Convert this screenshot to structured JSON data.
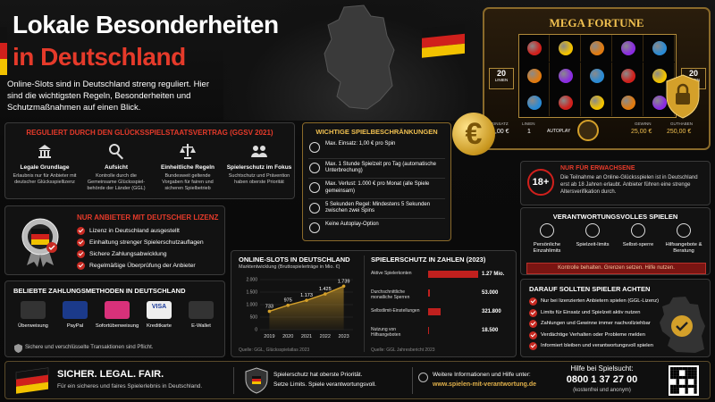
{
  "header": {
    "title_line1": "Lokale Besonderheiten",
    "title_line2": "in Deutschland",
    "intro": "Online-Slots sind in Deutschland streng reguliert. Hier sind die wichtigsten Regeln, Besonderheiten und Schutzmaßnahmen auf einen Blick."
  },
  "slot_machine": {
    "title": "MEGA FORTUNE",
    "lines_badge": "20",
    "lines_badge_label": "LINIEN",
    "bet_label": "EINSATZ",
    "bet": "1,00 €",
    "lines_label": "LINIEN",
    "lines": "1",
    "autoplay": "AUTOPLAY",
    "win_label": "GEWINN",
    "win": "25,00 €",
    "balance_label": "GUTHABEN",
    "balance": "250,00 €"
  },
  "euro_symbol": "€",
  "regulation": {
    "title": "REGULIERT DURCH DEN GLÜCKSSPIELSTAATSVERTRAG (GGSV 2021)",
    "items": [
      {
        "title": "Legale Grundlage",
        "text": "Erlaubnis nur für Anbieter mit deutscher Glücksspiellizenz"
      },
      {
        "title": "Aufsicht",
        "text": "Kontrolle durch die Gemeinsame Glücksspiel-behörde der Länder (GGL)"
      },
      {
        "title": "Einheitliche Regeln",
        "text": "Bundesweit geltende Vorgaben für fairen und sicheren Spielbetrieb"
      },
      {
        "title": "Spielerschutz im Fokus",
        "text": "Suchtschutz und Prävention haben oberste Priorität"
      }
    ]
  },
  "restrictions": {
    "title": "WICHTIGE SPIELBESCHRÄNKUNGEN",
    "items": [
      "Max. Einsatz: 1,00 € pro Spin",
      "Max. 1 Stunde Spielzeit pro Tag (automatische Unterbrechung)",
      "Max. Verlust: 1.000 € pro Monat (alle Spiele gemeinsam)",
      "5 Sekunden Regel: Mindestens 5 Sekunden zwischen zwei Spins",
      "Keine Autoplay-Option"
    ]
  },
  "adults": {
    "badge": "18+",
    "title": "NUR FÜR ERWACHSENE",
    "text": "Die Teilnahme an Online-Glücksspielen ist in Deutschland erst ab 18 Jahren erlaubt. Anbieter führen eine strenge Altersverifikation durch."
  },
  "license": {
    "title": "NUR ANBIETER MIT DEUTSCHER LIZENZ",
    "items": [
      "Lizenz in Deutschland ausgestellt",
      "Einhaltung strenger Spielerschutzauflagen",
      "Sichere Zahlungsabwicklung",
      "Regelmäßige Überprüfung der Anbieter"
    ]
  },
  "responsible": {
    "title": "VERANTWORTUNGSVOLLES SPIELEN",
    "items": [
      "Persönliche Einzahlimits",
      "Spielzeit-limits",
      "Selbst-sperre",
      "Hilfsangebote & Beratung"
    ],
    "slogan": "Kontrolle behalten. Grenzen setzen. Hilfe nutzen."
  },
  "market_chart": {
    "type": "line",
    "title": "ONLINE-SLOTS IN DEUTSCHLAND",
    "subtitle": "Marktentwicklung (Bruttospielerträge in Mio. €)",
    "categories": [
      "2019",
      "2020",
      "2021",
      "2022",
      "2023"
    ],
    "values": [
      733,
      975,
      1173,
      1425,
      1739
    ],
    "value_labels": [
      "733",
      "975",
      "1.173",
      "1.425",
      "1.739"
    ],
    "ylim": [
      0,
      2000
    ],
    "yticks": [
      0,
      500,
      {
        "value": 1000,
        "label": "1.000"
      },
      {
        "value": 1500,
        "label": "1.500"
      },
      {
        "value": 2000,
        "label": "2.000"
      }
    ],
    "color": "#d4a02a",
    "source": "Quelle: GGL, Glücksspielatlas 2023"
  },
  "protection_chart": {
    "type": "bar",
    "title": "SPIELERSCHUTZ IN ZAHLEN (2023)",
    "categories": [
      "Aktive Spielerkonten",
      "Durchschnittliche monatliche Sperren",
      "Selbstlimit-Einstellungen",
      "Nutzung von Hilfsangeboten"
    ],
    "values": [
      1270000,
      53000,
      321800,
      18500
    ],
    "value_labels": [
      "1.27 Mio.",
      "53.000",
      "321.800",
      "18.500"
    ],
    "color": "#c0201e",
    "source": "Quelle: GGL Jahresbericht 2023"
  },
  "payments": {
    "title": "BELIEBTE ZAHLUNGSMETHODEN IN DEUTSCHLAND",
    "methods": [
      "Überweisung",
      "PayPal",
      "Sofortüberweisung",
      "Kreditkarte",
      "E-Wallet"
    ],
    "card_logo": "VISA",
    "note": "Sichere und verschlüsselte Transaktionen sind Pflicht."
  },
  "checklist": {
    "title": "DARAUF SOLLTEN SPIELER ACHTEN",
    "items": [
      "Nur bei lizenzierten Anbietern spielen (GGL-Lizenz)",
      "Limits für Einsatz und Spielzeit aktiv nutzen",
      "Zahlungen und Gewinne immer nachvollziehbar",
      "Verdächtige Verhalten oder Probleme melden",
      "Informiert bleiben und verantwortungsvoll spielen"
    ]
  },
  "footer": {
    "slogan": "SICHER. LEGAL. FAIR.",
    "slogan_text": "Für ein sicheres und faires Spielerlebnis in Deutschland.",
    "protection_line1": "Spielerschutz hat oberste Priorität.",
    "protection_line2": "Setze Limits. Spiele verantwortungsvoll.",
    "info_label": "Weitere Informationen und Hilfe unter:",
    "url": "www.spielen-mit-verantwortung.de",
    "help_label": "Hilfe bei Spielsucht:",
    "help_phone": "0800 1 37 27 00",
    "help_note": "(kostenfrei und anonym)"
  }
}
